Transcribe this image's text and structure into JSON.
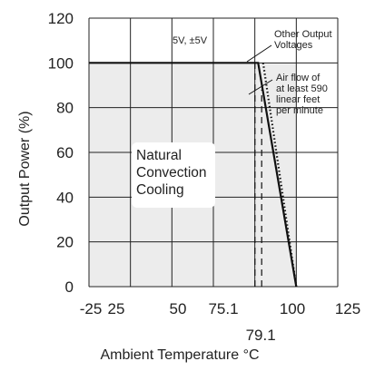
{
  "chart_data": {
    "type": "line",
    "title": "",
    "xlabel": "Ambient Temperature °C",
    "ylabel": "Output Power (%)",
    "x_ticks": [
      -25,
      25,
      50,
      75.1,
      100,
      125
    ],
    "x_tick_labels": [
      "-25",
      "25",
      "50",
      "75.1",
      "100",
      "125"
    ],
    "x_extra_tick": {
      "x": 79.1,
      "label": "79.1"
    },
    "y_ticks": [
      0,
      20,
      40,
      60,
      80,
      100,
      120
    ],
    "y_tick_labels": [
      "0",
      "20",
      "40",
      "60",
      "80",
      "100",
      "120"
    ],
    "xlim": [
      -25,
      125
    ],
    "ylim": [
      0,
      120
    ],
    "grid": true,
    "shaded_region": {
      "x": [
        -25,
        100
      ],
      "y": [
        0,
        100
      ]
    },
    "series": [
      {
        "style": "solid",
        "points": [
          [
            -25,
            100
          ],
          [
            77,
            100
          ],
          [
            100,
            0
          ]
        ]
      },
      {
        "style": "dotted",
        "points": [
          [
            80,
            100
          ],
          [
            100,
            0
          ]
        ]
      },
      {
        "style": "dashed",
        "points": [
          [
            75.1,
            0
          ],
          [
            75.1,
            100
          ]
        ]
      },
      {
        "style": "dashed",
        "points": [
          [
            79.1,
            0
          ],
          [
            79.1,
            88
          ]
        ]
      }
    ],
    "annotations": {
      "five_volt": "5V, ±5V",
      "other_output": [
        "Other Output",
        "Voltages"
      ],
      "airflow": [
        "Air flow of",
        "at least 590",
        "linear feet",
        "per minute"
      ],
      "natural": [
        "Natural",
        "Convection",
        "Cooling"
      ]
    },
    "colors": {
      "line": "#111111",
      "shade": "#ececec",
      "grid": "#222222",
      "box": "#ffffff"
    }
  }
}
